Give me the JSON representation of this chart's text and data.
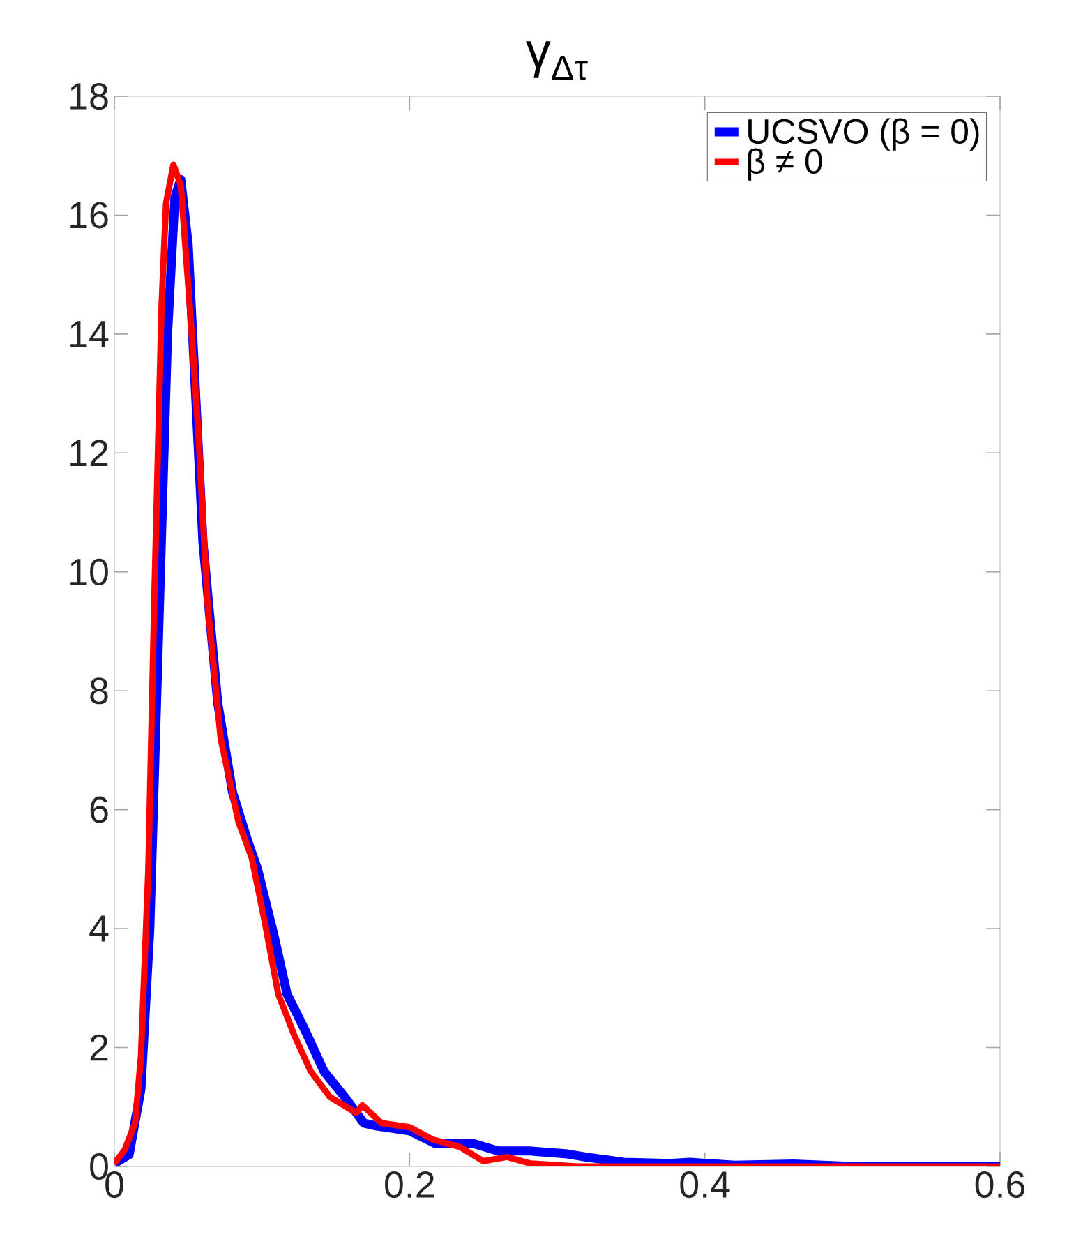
{
  "chart_data": {
    "type": "line",
    "title": "γ$_{Δτ}$",
    "xlim": [
      0,
      0.6
    ],
    "xticks": [
      0,
      0.2,
      0.4,
      0.6
    ],
    "ylim": [
      0,
      18
    ],
    "yticks": [
      0,
      2,
      4,
      6,
      8,
      10,
      12,
      14,
      16,
      18
    ],
    "legend": "top right",
    "grid": false,
    "series": [
      {
        "name": "UCSVO (β = 0)",
        "color": "#0000ff",
        "x": [
          0,
          0.01,
          0.018,
          0.024,
          0.03,
          0.036,
          0.041,
          0.045,
          0.05,
          0.055,
          0.06,
          0.07,
          0.08,
          0.09,
          0.097,
          0.108,
          0.117,
          0.129,
          0.142,
          0.156,
          0.169,
          0.178,
          0.2,
          0.218,
          0.244,
          0.26,
          0.282,
          0.307,
          0.319,
          0.345,
          0.376,
          0.39,
          0.42,
          0.46,
          0.5,
          0.6
        ],
        "values": [
          0.05,
          0.2,
          1.3,
          4.0,
          9,
          14,
          16.3,
          16.6,
          15.5,
          13,
          10.5,
          7.8,
          6.3,
          5.5,
          5.0,
          3.9,
          2.9,
          2.3,
          1.6,
          1.17,
          0.73,
          0.68,
          0.6,
          0.38,
          0.38,
          0.26,
          0.26,
          0.21,
          0.16,
          0.07,
          0.05,
          0.07,
          0.02,
          0.04,
          0,
          0
        ]
      },
      {
        "name": "β ≠ 0",
        "color": "#ff0000",
        "x": [
          0,
          0.007,
          0.014,
          0.018,
          0.023,
          0.027,
          0.032,
          0.035,
          0.04,
          0.045,
          0.051,
          0.057,
          0.063,
          0.072,
          0.084,
          0.093,
          0.102,
          0.111,
          0.122,
          0.133,
          0.146,
          0.164,
          0.168,
          0.181,
          0.2,
          0.216,
          0.234,
          0.25,
          0.266,
          0.282,
          0.314,
          0.6
        ],
        "values": [
          0.05,
          0.28,
          0.73,
          1.85,
          5.0,
          9.5,
          14.5,
          16.2,
          16.85,
          16.5,
          14.5,
          12.3,
          9.5,
          7.2,
          5.8,
          5.2,
          4.1,
          2.9,
          2.2,
          1.6,
          1.17,
          0.9,
          1.03,
          0.73,
          0.66,
          0.45,
          0.33,
          0.09,
          0.16,
          0.05,
          0,
          0
        ]
      }
    ]
  }
}
